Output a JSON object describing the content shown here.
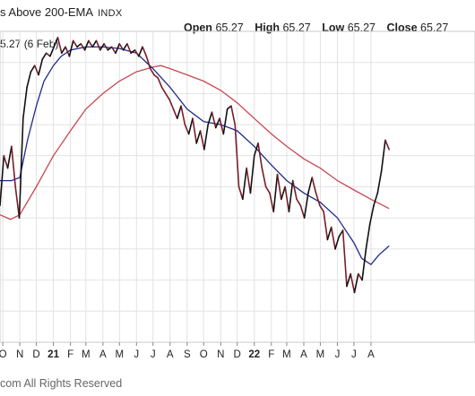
{
  "chart": {
    "title": "s Above 200-EMA",
    "symbol": "INDX",
    "ohlc": [
      {
        "label": "Open",
        "value": "65.27"
      },
      {
        "label": "High",
        "value": "65.27"
      },
      {
        "label": "Low",
        "value": "65.27"
      },
      {
        "label": "Close",
        "value": "65.27"
      }
    ],
    "current_label": "5.27 (6 Feb)",
    "footer": "com All Rights Reserved"
  },
  "chart_data": {
    "type": "line",
    "grid": true,
    "x_domain": [
      "2020-09-26",
      "2023-02-06"
    ],
    "ylim": [
      0,
      100
    ],
    "x_ticks": [
      {
        "date": "2020-10-01",
        "label": "O",
        "year": false
      },
      {
        "date": "2020-11-01",
        "label": "N",
        "year": false
      },
      {
        "date": "2020-12-01",
        "label": "D",
        "year": false
      },
      {
        "date": "2021-01-01",
        "label": "21",
        "year": true
      },
      {
        "date": "2021-02-01",
        "label": "F",
        "year": false
      },
      {
        "date": "2021-03-01",
        "label": "M",
        "year": false
      },
      {
        "date": "2021-04-01",
        "label": "A",
        "year": false
      },
      {
        "date": "2021-05-01",
        "label": "M",
        "year": false
      },
      {
        "date": "2021-06-01",
        "label": "J",
        "year": false
      },
      {
        "date": "2021-07-01",
        "label": "J",
        "year": false
      },
      {
        "date": "2021-08-01",
        "label": "A",
        "year": false
      },
      {
        "date": "2021-09-01",
        "label": "S",
        "year": false
      },
      {
        "date": "2021-10-01",
        "label": "O",
        "year": false
      },
      {
        "date": "2021-11-01",
        "label": "N",
        "year": false
      },
      {
        "date": "2021-12-01",
        "label": "D",
        "year": false
      },
      {
        "date": "2022-01-01",
        "label": "22",
        "year": true
      },
      {
        "date": "2022-02-01",
        "label": "F",
        "year": false
      },
      {
        "date": "2022-03-01",
        "label": "M",
        "year": false
      },
      {
        "date": "2022-04-01",
        "label": "A",
        "year": false
      },
      {
        "date": "2022-05-01",
        "label": "M",
        "year": false
      },
      {
        "date": "2022-06-01",
        "label": "J",
        "year": false
      },
      {
        "date": "2022-07-01",
        "label": "J",
        "year": false
      },
      {
        "date": "2022-08-01",
        "label": "A",
        "year": false
      }
    ],
    "series": [
      {
        "role": "price",
        "color": "#7a1c28",
        "up_color": "#111111",
        "points": [
          [
            "2020-09-26",
            44
          ],
          [
            "2020-10-03",
            60
          ],
          [
            "2020-10-10",
            56
          ],
          [
            "2020-10-17",
            63
          ],
          [
            "2020-10-24",
            50
          ],
          [
            "2020-10-31",
            40
          ],
          [
            "2020-11-07",
            72
          ],
          [
            "2020-11-14",
            82
          ],
          [
            "2020-11-21",
            87
          ],
          [
            "2020-11-28",
            89
          ],
          [
            "2020-12-05",
            86
          ],
          [
            "2020-12-12",
            91
          ],
          [
            "2020-12-19",
            93
          ],
          [
            "2020-12-26",
            92
          ],
          [
            "2021-01-02",
            95
          ],
          [
            "2021-01-09",
            98
          ],
          [
            "2021-01-16",
            93
          ],
          [
            "2021-01-23",
            95
          ],
          [
            "2021-01-30",
            92
          ],
          [
            "2021-02-06",
            97
          ],
          [
            "2021-02-13",
            95
          ],
          [
            "2021-02-20",
            96
          ],
          [
            "2021-02-27",
            94
          ],
          [
            "2021-03-06",
            97
          ],
          [
            "2021-03-13",
            95
          ],
          [
            "2021-03-20",
            97
          ],
          [
            "2021-03-27",
            94
          ],
          [
            "2021-04-03",
            96
          ],
          [
            "2021-04-10",
            94
          ],
          [
            "2021-04-17",
            95
          ],
          [
            "2021-04-24",
            93
          ],
          [
            "2021-05-01",
            96
          ],
          [
            "2021-05-08",
            94
          ],
          [
            "2021-05-15",
            96
          ],
          [
            "2021-05-22",
            93
          ],
          [
            "2021-05-29",
            94
          ],
          [
            "2021-06-05",
            92
          ],
          [
            "2021-06-12",
            95
          ],
          [
            "2021-06-19",
            92
          ],
          [
            "2021-06-26",
            88
          ],
          [
            "2021-07-03",
            86
          ],
          [
            "2021-07-10",
            85
          ],
          [
            "2021-07-17",
            82
          ],
          [
            "2021-07-24",
            80
          ],
          [
            "2021-07-31",
            78
          ],
          [
            "2021-08-07",
            75
          ],
          [
            "2021-08-14",
            72
          ],
          [
            "2021-08-21",
            76
          ],
          [
            "2021-08-28",
            70
          ],
          [
            "2021-09-04",
            67
          ],
          [
            "2021-09-11",
            72
          ],
          [
            "2021-09-18",
            64
          ],
          [
            "2021-09-25",
            68
          ],
          [
            "2021-10-02",
            62
          ],
          [
            "2021-10-09",
            70
          ],
          [
            "2021-10-16",
            74
          ],
          [
            "2021-10-23",
            69
          ],
          [
            "2021-10-30",
            72
          ],
          [
            "2021-11-06",
            67
          ],
          [
            "2021-11-13",
            75
          ],
          [
            "2021-11-20",
            76
          ],
          [
            "2021-11-27",
            70
          ],
          [
            "2021-12-04",
            50
          ],
          [
            "2021-12-11",
            46
          ],
          [
            "2021-12-18",
            56
          ],
          [
            "2021-12-25",
            48
          ],
          [
            "2022-01-01",
            60
          ],
          [
            "2022-01-08",
            64
          ],
          [
            "2022-01-15",
            56
          ],
          [
            "2022-01-22",
            50
          ],
          [
            "2022-01-29",
            48
          ],
          [
            "2022-02-05",
            42
          ],
          [
            "2022-02-12",
            54
          ],
          [
            "2022-02-19",
            46
          ],
          [
            "2022-02-26",
            50
          ],
          [
            "2022-03-05",
            42
          ],
          [
            "2022-03-12",
            52
          ],
          [
            "2022-03-19",
            46
          ],
          [
            "2022-03-26",
            44
          ],
          [
            "2022-04-02",
            40
          ],
          [
            "2022-04-09",
            48
          ],
          [
            "2022-04-16",
            53
          ],
          [
            "2022-04-23",
            48
          ],
          [
            "2022-04-30",
            44
          ],
          [
            "2022-05-07",
            42
          ],
          [
            "2022-05-14",
            33
          ],
          [
            "2022-05-21",
            37
          ],
          [
            "2022-05-28",
            30
          ],
          [
            "2022-06-04",
            34
          ],
          [
            "2022-06-11",
            36
          ],
          [
            "2022-06-18",
            18
          ],
          [
            "2022-06-25",
            22
          ],
          [
            "2022-07-02",
            16
          ],
          [
            "2022-07-09",
            22
          ],
          [
            "2022-07-16",
            20
          ],
          [
            "2022-07-23",
            30
          ],
          [
            "2022-07-30",
            38
          ],
          [
            "2022-08-06",
            44
          ],
          [
            "2022-08-13",
            48
          ],
          [
            "2022-08-20",
            55
          ],
          [
            "2022-08-27",
            65
          ],
          [
            "2022-09-03",
            62
          ]
        ]
      },
      {
        "role": "short-ema",
        "color": "#1f2a8a",
        "points": [
          [
            "2020-09-26",
            52
          ],
          [
            "2020-10-17",
            52
          ],
          [
            "2020-11-01",
            53
          ],
          [
            "2020-11-15",
            65
          ],
          [
            "2020-12-01",
            76
          ],
          [
            "2020-12-15",
            84
          ],
          [
            "2021-01-01",
            89
          ],
          [
            "2021-01-15",
            92
          ],
          [
            "2021-02-01",
            94
          ],
          [
            "2021-03-01",
            95
          ],
          [
            "2021-04-01",
            95
          ],
          [
            "2021-05-01",
            94.5
          ],
          [
            "2021-06-01",
            93
          ],
          [
            "2021-07-01",
            88
          ],
          [
            "2021-08-01",
            82
          ],
          [
            "2021-09-01",
            75
          ],
          [
            "2021-10-01",
            71
          ],
          [
            "2021-11-01",
            70
          ],
          [
            "2021-12-01",
            68
          ],
          [
            "2022-01-01",
            63
          ],
          [
            "2022-02-01",
            57
          ],
          [
            "2022-03-01",
            52
          ],
          [
            "2022-04-01",
            48
          ],
          [
            "2022-05-01",
            45
          ],
          [
            "2022-06-01",
            40
          ],
          [
            "2022-07-01",
            32
          ],
          [
            "2022-07-15",
            27
          ],
          [
            "2022-08-01",
            25
          ],
          [
            "2022-08-15",
            28
          ],
          [
            "2022-09-03",
            31
          ]
        ]
      },
      {
        "role": "long-ema",
        "color": "#c84850",
        "points": [
          [
            "2020-09-26",
            41
          ],
          [
            "2020-10-15",
            39.5
          ],
          [
            "2020-11-01",
            41
          ],
          [
            "2020-12-01",
            50
          ],
          [
            "2021-01-01",
            60
          ],
          [
            "2021-02-01",
            68
          ],
          [
            "2021-03-01",
            75
          ],
          [
            "2021-04-01",
            80
          ],
          [
            "2021-05-01",
            84
          ],
          [
            "2021-06-01",
            87
          ],
          [
            "2021-07-01",
            88.5
          ],
          [
            "2021-07-15",
            89
          ],
          [
            "2021-08-01",
            88
          ],
          [
            "2021-09-01",
            86
          ],
          [
            "2021-10-01",
            84
          ],
          [
            "2021-11-01",
            81
          ],
          [
            "2021-12-01",
            77
          ],
          [
            "2022-01-01",
            72
          ],
          [
            "2022-02-01",
            67
          ],
          [
            "2022-03-01",
            63
          ],
          [
            "2022-04-01",
            59
          ],
          [
            "2022-05-01",
            56
          ],
          [
            "2022-06-01",
            52
          ],
          [
            "2022-07-01",
            49
          ],
          [
            "2022-08-01",
            46
          ],
          [
            "2022-09-03",
            43
          ]
        ]
      }
    ]
  }
}
